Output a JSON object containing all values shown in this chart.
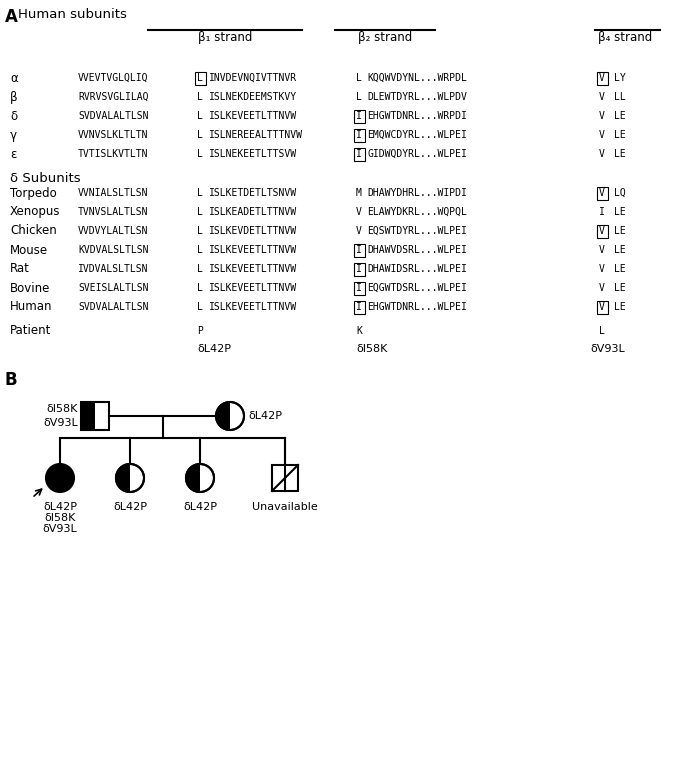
{
  "rows": [
    {
      "name": "α",
      "col1": "VVEVTVGLQLIQ",
      "col2": "L",
      "col3": "INVDEVNQIVTTNVR",
      "col4": "L",
      "col5": "KQQWVDYNL...WRPDL",
      "col6": "V",
      "col7": "LY",
      "box_col2": true,
      "box_col4": false,
      "box_col6": true
    },
    {
      "name": "β",
      "col1": "RVRVSVGLILAQ",
      "col2": "L",
      "col3": "ISLNEKDEEMSTKVY",
      "col4": "L",
      "col5": "DLEWTDYRL...WLPDV",
      "col6": "V",
      "col7": "LL",
      "box_col2": false,
      "box_col4": false,
      "box_col6": false
    },
    {
      "name": "δ",
      "col1": "SVDVALALTLSN",
      "col2": "L",
      "col3": "ISLKEVEETLTTNVW",
      "col4": "I",
      "col5": "EHGWTDNRL...WRPDI",
      "col6": "V",
      "col7": "LE",
      "box_col2": false,
      "box_col4": true,
      "box_col6": false
    },
    {
      "name": "γ",
      "col1": "VVNVSLKLTLTN",
      "col2": "L",
      "col3": "ISLNEREEALTTTNVW",
      "col4": "I",
      "col5": "EMQWCDYRL...WLPEI",
      "col6": "V",
      "col7": "LE",
      "box_col2": false,
      "box_col4": true,
      "box_col6": false
    },
    {
      "name": "ε",
      "col1": "TVTISLKVTLTN",
      "col2": "L",
      "col3": "ISLNEKEETLTTSVW",
      "col4": "I",
      "col5": "GIDWQDYRL...WLPEI",
      "col6": "V",
      "col7": "LE",
      "box_col2": false,
      "box_col4": true,
      "box_col6": false
    }
  ],
  "delta_rows": [
    {
      "name": "Torpedo",
      "col1": "VVNIALSLTLSN",
      "col2": "L",
      "col3": "ISLKETDETLTSNVW",
      "col4": "M",
      "col5": "DHAWYDHRL...WIPDI",
      "col6": "V",
      "col7": "LQ",
      "box_col2": false,
      "box_col4": false,
      "box_col6": true
    },
    {
      "name": "Xenopus",
      "col1": "TVNVSLALTLSN",
      "col2": "L",
      "col3": "ISLKEADETLTTNVW",
      "col4": "V",
      "col5": "ELAWYDKRL...WQPQL",
      "col6": "I",
      "col7": "LE",
      "box_col2": false,
      "box_col4": false,
      "box_col6": false
    },
    {
      "name": "Chicken",
      "col1": "VVDVYLALTLSN",
      "col2": "L",
      "col3": "ISLKEVDETLTTNVW",
      "col4": "V",
      "col5": "EQSWTDYRL...WLPEI",
      "col6": "V",
      "col7": "LE",
      "box_col2": false,
      "box_col4": false,
      "box_col6": true
    },
    {
      "name": "Mouse",
      "col1": "KVDVALSLTLSN",
      "col2": "L",
      "col3": "ISLKEVEETLTTNVW",
      "col4": "I",
      "col5": "DHAWVDSRL...WLPEI",
      "col6": "V",
      "col7": "LE",
      "box_col2": false,
      "box_col4": true,
      "box_col6": false
    },
    {
      "name": "Rat",
      "col1": "IVDVALSLTLSN",
      "col2": "L",
      "col3": "ISLKEVEETLTTNVW",
      "col4": "I",
      "col5": "DHAWIDSRL...WLPEI",
      "col6": "V",
      "col7": "LE",
      "box_col2": false,
      "box_col4": true,
      "box_col6": false
    },
    {
      "name": "Bovine",
      "col1": "SVEISLALTLSN",
      "col2": "L",
      "col3": "ISLKEVEETLTTNVW",
      "col4": "I",
      "col5": "EQGWTDSRL...WLPEI",
      "col6": "V",
      "col7": "LE",
      "box_col2": false,
      "box_col4": true,
      "box_col6": false
    },
    {
      "name": "Human",
      "col1": "SVDVALALTLSN",
      "col2": "L",
      "col3": "ISLKEVEETLTTNVW",
      "col4": "I",
      "col5": "EHGWTDNRL...WLPEI",
      "col6": "V",
      "col7": "LE",
      "box_col2": false,
      "box_col4": true,
      "box_col6": true
    }
  ],
  "bg_color": "#ffffff"
}
